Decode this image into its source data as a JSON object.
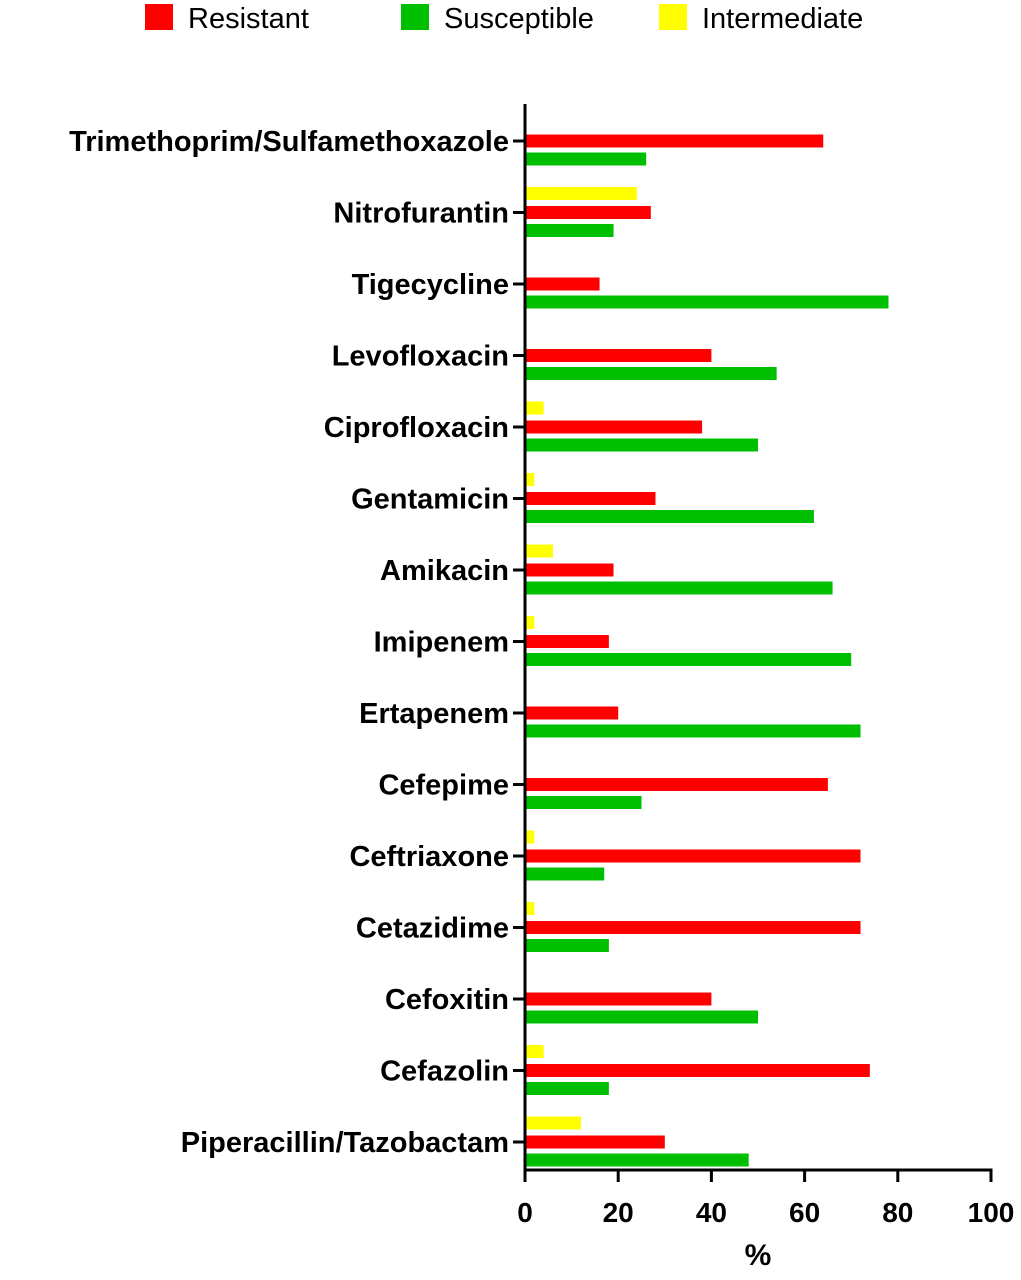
{
  "chart_data": {
    "type": "bar",
    "orientation": "horizontal",
    "categories": [
      "Trimethoprim/Sulfamethoxazole",
      "Nitrofurantin",
      "Tigecycline",
      "Levofloxacin",
      "Ciprofloxacin",
      "Gentamicin",
      "Amikacin",
      "Imipenem",
      "Ertapenem",
      "Cefepime",
      "Ceftriaxone",
      "Cetazidime",
      "Cefoxitin",
      "Cefazolin",
      "Piperacillin/Tazobactam"
    ],
    "series": [
      {
        "name": "Intermediate",
        "color": "#ffff00",
        "values": [
          0,
          24,
          0,
          0,
          4,
          2,
          6,
          2,
          0,
          0,
          2,
          2,
          0,
          4,
          12
        ]
      },
      {
        "name": "Resistant",
        "color": "#ff0000",
        "values": [
          64,
          27,
          16,
          40,
          38,
          28,
          19,
          18,
          20,
          65,
          72,
          72,
          40,
          74,
          30
        ]
      },
      {
        "name": "Susceptible",
        "color": "#00bf00",
        "values": [
          26,
          19,
          78,
          54,
          50,
          62,
          66,
          70,
          72,
          25,
          17,
          18,
          50,
          18,
          48
        ]
      }
    ],
    "legend_order": [
      "Resistant",
      "Susceptible",
      "Intermediate"
    ],
    "legend_position": "top",
    "xlabel": "%",
    "ylabel": "",
    "xlim": [
      0,
      100
    ],
    "xticks": [
      0,
      20,
      40,
      60,
      80,
      100
    ],
    "grid": false
  }
}
